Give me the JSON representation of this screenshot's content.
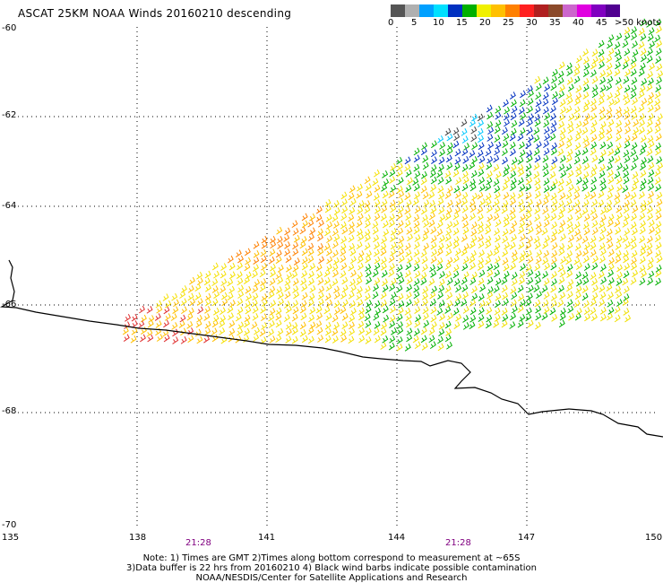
{
  "title": "ASCAT 25KM NOAA Winds 20160210 descending",
  "legend": {
    "colors": [
      "#555555",
      "#b0b0b0",
      "#00a0ff",
      "#00e0ff",
      "#0030c0",
      "#00b000",
      "#f0f000",
      "#ffc000",
      "#ff8000",
      "#ff2020",
      "#b02020",
      "#8b4a2a",
      "#cc66cc",
      "#e000e0",
      "#8000c0",
      "#500090"
    ],
    "labels": [
      "0",
      "5",
      "10",
      "15",
      "20",
      "25",
      "30",
      "35",
      "40",
      "45"
    ],
    "last_label": ">50 knots"
  },
  "lat_labels": [
    "-60",
    "-62",
    "-64",
    "-66",
    "-68",
    "-70"
  ],
  "lon_labels": [
    "135",
    "138",
    "141",
    "144",
    "147",
    "150"
  ],
  "time_labels": [
    "21:28",
    "21:28"
  ],
  "notes": [
    "Note: 1) Times are GMT 2)Times along bottom correspond to measurement at ~65S",
    "3)Data buffer is 22 hrs from 20160210 4) Black wind barbs indicate possible contamination",
    "NOAA/NESDIS/Center for Satellite Applications and Research"
  ]
}
